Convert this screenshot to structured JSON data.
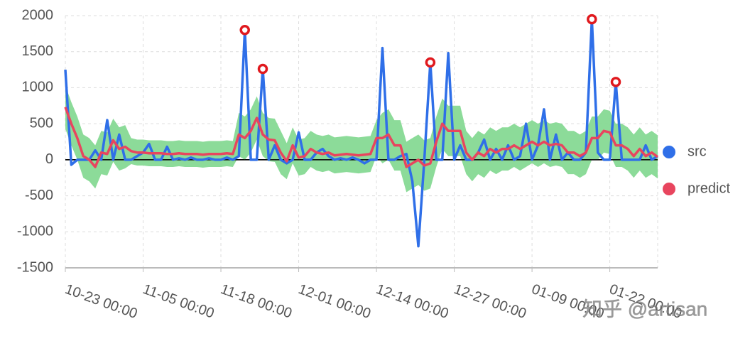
{
  "chart_data": {
    "type": "line",
    "categories": [
      "10-23 00:00",
      null,
      null,
      null,
      null,
      null,
      null,
      null,
      null,
      null,
      null,
      null,
      null,
      "11-05 00:00",
      null,
      null,
      null,
      null,
      null,
      null,
      null,
      null,
      null,
      null,
      null,
      null,
      "11-18 00:00",
      null,
      null,
      null,
      null,
      null,
      null,
      null,
      null,
      null,
      null,
      null,
      null,
      "12-01 00:00",
      null,
      null,
      null,
      null,
      null,
      null,
      null,
      null,
      null,
      null,
      null,
      null,
      "12-14 00:00",
      null,
      null,
      null,
      null,
      null,
      null,
      null,
      null,
      null,
      null,
      null,
      null,
      "12-27 00:00",
      null,
      null,
      null,
      null,
      null,
      null,
      null,
      null,
      null,
      null,
      null,
      null,
      "01-09 00:00",
      null,
      null,
      null,
      null,
      null,
      null,
      null,
      null,
      null,
      null,
      null,
      null,
      "01-22 00:00",
      null,
      null,
      null,
      null,
      null,
      null,
      null,
      null
    ],
    "series": [
      {
        "name": "src",
        "color": "#2f6fe8",
        "values": [
          1250,
          -70,
          0,
          0,
          0,
          130,
          0,
          550,
          0,
          350,
          0,
          0,
          50,
          100,
          220,
          0,
          0,
          180,
          0,
          20,
          0,
          30,
          0,
          0,
          20,
          0,
          0,
          30,
          0,
          50,
          1800,
          0,
          0,
          1260,
          0,
          200,
          0,
          -50,
          0,
          380,
          0,
          0,
          100,
          150,
          50,
          0,
          20,
          0,
          30,
          0,
          -50,
          0,
          0,
          1550,
          0,
          0,
          50,
          80,
          -300,
          -1200,
          0,
          1350,
          0,
          0,
          1480,
          0,
          200,
          0,
          0,
          100,
          280,
          0,
          150,
          0,
          200,
          0,
          50,
          500,
          0,
          200,
          700,
          0,
          350,
          0,
          100,
          0,
          0,
          100,
          1950,
          100,
          0,
          0,
          1080,
          0,
          0,
          0,
          0,
          200,
          0,
          50
        ]
      },
      {
        "name": "predict",
        "color": "#e8455e",
        "values": [
          730,
          500,
          300,
          50,
          0,
          -100,
          100,
          80,
          270,
          150,
          180,
          120,
          100,
          100,
          90,
          90,
          90,
          80,
          80,
          90,
          80,
          80,
          80,
          70,
          80,
          80,
          80,
          90,
          80,
          350,
          300,
          400,
          580,
          350,
          280,
          270,
          100,
          -20,
          200,
          30,
          50,
          150,
          100,
          80,
          100,
          60,
          70,
          80,
          70,
          60,
          70,
          80,
          300,
          300,
          350,
          200,
          200,
          -100,
          -50,
          0,
          -80,
          -50,
          250,
          500,
          400,
          400,
          400,
          100,
          0,
          100,
          50,
          150,
          100,
          150,
          150,
          200,
          150,
          200,
          250,
          200,
          250,
          200,
          220,
          200,
          100,
          100,
          50,
          100,
          300,
          300,
          400,
          380,
          200,
          200,
          150,
          50,
          150,
          50,
          100,
          40
        ]
      }
    ],
    "band": {
      "color": "#86d994",
      "upper": [
        1030,
        800,
        600,
        350,
        300,
        200,
        400,
        380,
        570,
        450,
        480,
        300,
        280,
        280,
        270,
        270,
        270,
        260,
        260,
        270,
        260,
        260,
        260,
        250,
        260,
        260,
        260,
        270,
        260,
        650,
        600,
        700,
        880,
        650,
        580,
        570,
        400,
        230,
        450,
        280,
        300,
        400,
        350,
        330,
        350,
        310,
        320,
        330,
        320,
        310,
        320,
        330,
        550,
        650,
        700,
        550,
        550,
        250,
        300,
        350,
        270,
        300,
        600,
        850,
        750,
        750,
        750,
        400,
        300,
        400,
        350,
        450,
        400,
        450,
        450,
        500,
        450,
        500,
        550,
        500,
        550,
        500,
        520,
        500,
        400,
        400,
        350,
        400,
        600,
        600,
        700,
        680,
        500,
        500,
        450,
        350,
        450,
        350,
        400,
        340
      ],
      "lower": [
        430,
        200,
        0,
        -250,
        -300,
        -400,
        -200,
        -220,
        -30,
        -150,
        -120,
        -60,
        -80,
        -80,
        -90,
        -90,
        -90,
        -100,
        -100,
        -90,
        -100,
        -100,
        -100,
        -110,
        -100,
        -100,
        -100,
        -90,
        -100,
        50,
        0,
        100,
        280,
        50,
        -20,
        -30,
        -200,
        -270,
        -50,
        -220,
        -200,
        -100,
        -150,
        -170,
        -150,
        -190,
        -180,
        -170,
        -180,
        -190,
        -180,
        -170,
        50,
        -50,
        0,
        -150,
        -150,
        -450,
        -400,
        -350,
        -430,
        -400,
        -100,
        150,
        50,
        50,
        50,
        -200,
        -300,
        -200,
        -250,
        -150,
        -200,
        -150,
        -150,
        -100,
        -150,
        -100,
        -50,
        -100,
        -50,
        -100,
        -80,
        -100,
        -200,
        -200,
        -250,
        -200,
        0,
        0,
        100,
        80,
        -100,
        -100,
        -150,
        -250,
        -150,
        -250,
        -200,
        -260
      ]
    },
    "anomaly_indices": [
      30,
      33,
      61,
      88,
      92
    ],
    "anomaly_color": "#e0191e",
    "ylim": [
      -1500,
      2000
    ],
    "yticks": [
      -1500,
      -1000,
      -500,
      0,
      500,
      1000,
      1500,
      2000
    ],
    "grid": true,
    "legend": "right",
    "watermark": "知乎 @artisan"
  }
}
